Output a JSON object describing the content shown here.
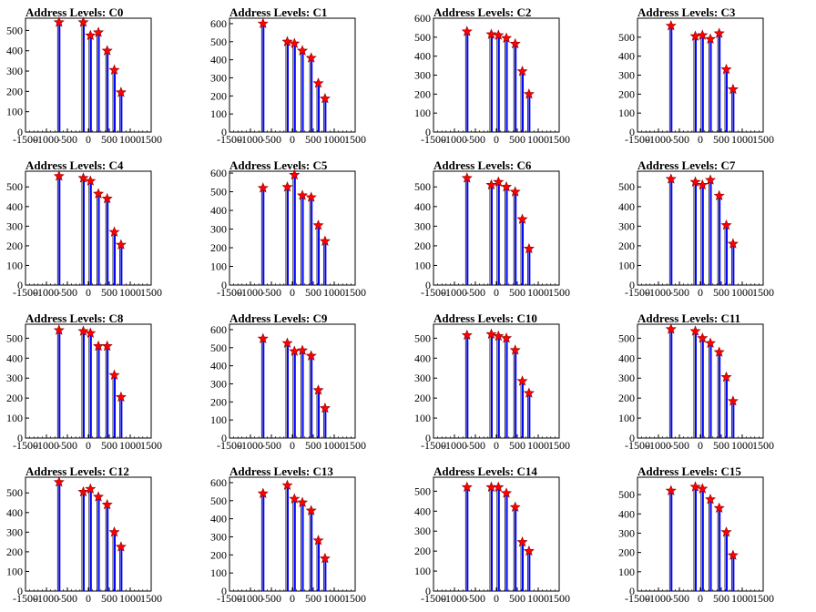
{
  "chart_data": [
    {
      "type": "bar",
      "title": "Address Levels: C0",
      "xlim": [
        -1500,
        1500
      ],
      "ylim": [
        0,
        560
      ],
      "xticks": [
        -1500,
        -1000,
        -500,
        0,
        500,
        1000,
        1500
      ],
      "yticks": [
        0,
        100,
        200,
        300,
        400,
        500
      ],
      "series": [
        {
          "values": [
            540,
            540,
            475,
            490,
            400,
            305,
            195
          ]
        }
      ]
    },
    {
      "type": "bar",
      "title": "Address Levels: C1",
      "xlim": [
        -1500,
        1500
      ],
      "ylim": [
        0,
        630
      ],
      "xticks": [
        -1500,
        -1000,
        -500,
        0,
        500,
        1000,
        1500
      ],
      "yticks": [
        0,
        100,
        200,
        300,
        400,
        500,
        600
      ],
      "series": [
        {
          "values": [
            600,
            500,
            490,
            450,
            410,
            270,
            185
          ]
        }
      ]
    },
    {
      "type": "bar",
      "title": "Address Levels: C2",
      "xlim": [
        -1500,
        1500
      ],
      "ylim": [
        0,
        600
      ],
      "xticks": [
        -1500,
        -1000,
        -500,
        0,
        500,
        1000,
        1500
      ],
      "yticks": [
        0,
        100,
        200,
        300,
        400,
        500,
        600
      ],
      "series": [
        {
          "values": [
            530,
            515,
            510,
            495,
            465,
            320,
            200
          ]
        }
      ]
    },
    {
      "type": "bar",
      "title": "Address Levels: C3",
      "xlim": [
        -1500,
        1500
      ],
      "ylim": [
        0,
        600
      ],
      "xticks": [
        -1500,
        -1000,
        -500,
        0,
        500,
        1000,
        1500
      ],
      "yticks": [
        0,
        100,
        200,
        300,
        400,
        500
      ],
      "series": [
        {
          "values": [
            560,
            505,
            510,
            490,
            520,
            330,
            225
          ]
        }
      ]
    },
    {
      "type": "bar",
      "title": "Address Levels: C4",
      "xlim": [
        -1500,
        1500
      ],
      "ylim": [
        0,
        580
      ],
      "xticks": [
        -1500,
        -1000,
        -500,
        0,
        500,
        1000,
        1500
      ],
      "yticks": [
        0,
        100,
        200,
        300,
        400,
        500
      ],
      "series": [
        {
          "values": [
            555,
            545,
            530,
            465,
            440,
            270,
            205
          ]
        }
      ]
    },
    {
      "type": "bar",
      "title": "Address Levels: C5",
      "xlim": [
        -1500,
        1500
      ],
      "ylim": [
        0,
        610
      ],
      "xticks": [
        -1500,
        -1000,
        -500,
        0,
        500,
        1000,
        1500
      ],
      "yticks": [
        0,
        100,
        200,
        300,
        400,
        500,
        600
      ],
      "series": [
        {
          "values": [
            520,
            525,
            590,
            480,
            470,
            320,
            235
          ]
        }
      ]
    },
    {
      "type": "bar",
      "title": "Address Levels: C6",
      "xlim": [
        -1500,
        1500
      ],
      "ylim": [
        0,
        580
      ],
      "xticks": [
        -1500,
        -1000,
        -500,
        0,
        500,
        1000,
        1500
      ],
      "yticks": [
        0,
        100,
        200,
        300,
        400,
        500
      ],
      "series": [
        {
          "values": [
            545,
            510,
            525,
            500,
            475,
            335,
            185
          ]
        }
      ]
    },
    {
      "type": "bar",
      "title": "Address Levels: C7",
      "xlim": [
        -1500,
        1500
      ],
      "ylim": [
        0,
        580
      ],
      "xticks": [
        -1500,
        -1000,
        -500,
        0,
        500,
        1000,
        1500
      ],
      "yticks": [
        0,
        100,
        200,
        300,
        400,
        500
      ],
      "series": [
        {
          "values": [
            540,
            525,
            510,
            535,
            455,
            305,
            210
          ]
        }
      ]
    },
    {
      "type": "bar",
      "title": "Address Levels: C8",
      "xlim": [
        -1500,
        1500
      ],
      "ylim": [
        0,
        570
      ],
      "xticks": [
        -1500,
        -1000,
        -500,
        0,
        500,
        1000,
        1500
      ],
      "yticks": [
        0,
        100,
        200,
        300,
        400,
        500
      ],
      "series": [
        {
          "values": [
            540,
            535,
            525,
            460,
            460,
            315,
            205
          ]
        }
      ]
    },
    {
      "type": "bar",
      "title": "Address Levels: C9",
      "xlim": [
        -1500,
        1500
      ],
      "ylim": [
        0,
        630
      ],
      "xticks": [
        -1500,
        -1000,
        -500,
        0,
        500,
        1000,
        1500
      ],
      "yticks": [
        0,
        100,
        200,
        300,
        400,
        500,
        600
      ],
      "series": [
        {
          "values": [
            550,
            525,
            480,
            485,
            455,
            265,
            165
          ]
        }
      ]
    },
    {
      "type": "bar",
      "title": "Address Levels: C10",
      "xlim": [
        -1500,
        1500
      ],
      "ylim": [
        0,
        570
      ],
      "xticks": [
        -1500,
        -1000,
        -500,
        0,
        500,
        1000,
        1500
      ],
      "yticks": [
        0,
        100,
        200,
        300,
        400,
        500
      ],
      "series": [
        {
          "values": [
            515,
            520,
            510,
            500,
            440,
            285,
            225
          ]
        }
      ]
    },
    {
      "type": "bar",
      "title": "Address Levels: C11",
      "xlim": [
        -1500,
        1500
      ],
      "ylim": [
        0,
        570
      ],
      "xticks": [
        -1500,
        -1000,
        -500,
        0,
        500,
        1000,
        1500
      ],
      "yticks": [
        0,
        100,
        200,
        300,
        400,
        500
      ],
      "series": [
        {
          "values": [
            545,
            535,
            500,
            475,
            430,
            305,
            185
          ]
        }
      ]
    },
    {
      "type": "bar",
      "title": "Address Levels: C12",
      "xlim": [
        -1500,
        1500
      ],
      "ylim": [
        0,
        580
      ],
      "xticks": [
        -1500,
        -1000,
        -500,
        0,
        500,
        1000,
        1500
      ],
      "yticks": [
        0,
        100,
        200,
        300,
        400,
        500
      ],
      "series": [
        {
          "values": [
            555,
            505,
            520,
            480,
            440,
            300,
            225
          ]
        }
      ]
    },
    {
      "type": "bar",
      "title": "Address Levels: C13",
      "xlim": [
        -1500,
        1500
      ],
      "ylim": [
        0,
        630
      ],
      "xticks": [
        -1500,
        -1000,
        -500,
        0,
        500,
        1000,
        1500
      ],
      "yticks": [
        0,
        100,
        200,
        300,
        400,
        500,
        600
      ],
      "series": [
        {
          "values": [
            540,
            585,
            510,
            490,
            445,
            280,
            180
          ]
        }
      ]
    },
    {
      "type": "bar",
      "title": "Address Levels: C14",
      "xlim": [
        -1500,
        1500
      ],
      "ylim": [
        0,
        570
      ],
      "xticks": [
        -1500,
        -1000,
        -500,
        0,
        500,
        1000,
        1500
      ],
      "yticks": [
        0,
        100,
        200,
        300,
        400,
        500
      ],
      "series": [
        {
          "values": [
            520,
            520,
            520,
            490,
            420,
            245,
            200
          ]
        }
      ]
    },
    {
      "type": "bar",
      "title": "Address Levels: C15",
      "xlim": [
        -1500,
        1500
      ],
      "ylim": [
        0,
        590
      ],
      "xticks": [
        -1500,
        -1000,
        -500,
        0,
        500,
        1000,
        1500
      ],
      "yticks": [
        0,
        100,
        200,
        300,
        400,
        500
      ],
      "series": [
        {
          "values": [
            520,
            540,
            530,
            475,
            430,
            305,
            185
          ]
        }
      ]
    }
  ],
  "peak_positions": [
    -700,
    -120,
    50,
    240,
    450,
    620,
    780
  ],
  "colors": {
    "bar": "#0000ff",
    "marker": "#ff0000",
    "marker_edge": "#8b0000",
    "axis": "#000000"
  }
}
